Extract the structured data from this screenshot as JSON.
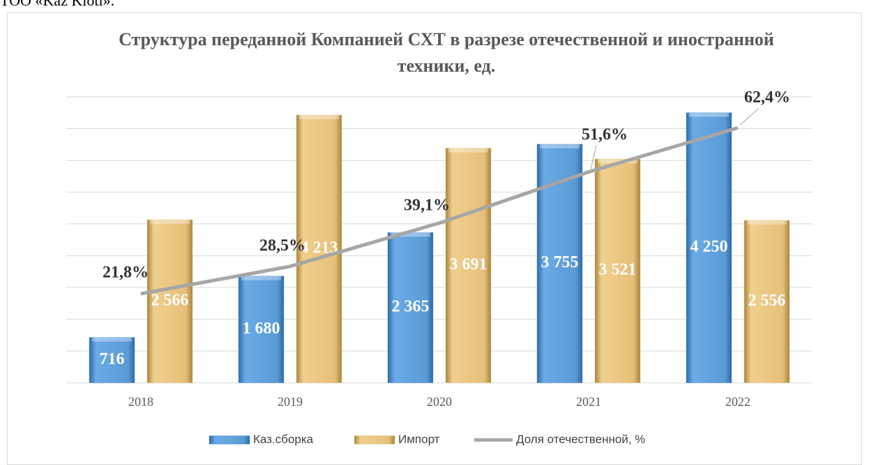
{
  "caption": "ТОО «Kaz Kioti».",
  "chart_data": {
    "type": "bar",
    "title": "Структура переданной Компанией СХТ в разрезе отечественной и иностранной техники, ед.",
    "categories": [
      "2018",
      "2019",
      "2020",
      "2021",
      "2022"
    ],
    "ylim": [
      0,
      4500
    ],
    "yticks": [
      0,
      500,
      1000,
      1500,
      2000,
      2500,
      3000,
      3500,
      4000,
      4500
    ],
    "grid": true,
    "y2lim": [
      0,
      70
    ],
    "legend": "bottom",
    "series": [
      {
        "name": "Каз.сборка",
        "color": "#5b9bd5",
        "values": [
          716,
          1680,
          2365,
          3755,
          4250
        ],
        "value_labels": [
          "716",
          "1 680",
          "2 365",
          "3 755",
          "4 250"
        ]
      },
      {
        "name": "Импорт",
        "color": "#e6c07a",
        "values": [
          2566,
          4213,
          3691,
          3521,
          2556
        ],
        "value_labels": [
          "2 566",
          "4 213",
          "3 691",
          "3 521",
          "2 556"
        ]
      },
      {
        "name": "Доля отечественной, %",
        "type": "line",
        "axis": "y2",
        "color": "#a6a6a6",
        "values": [
          21.8,
          28.5,
          39.1,
          51.6,
          62.4
        ],
        "value_labels": [
          "21,8%",
          "28,5%",
          "39,1%",
          "51,6%",
          "62,4%"
        ]
      }
    ]
  }
}
